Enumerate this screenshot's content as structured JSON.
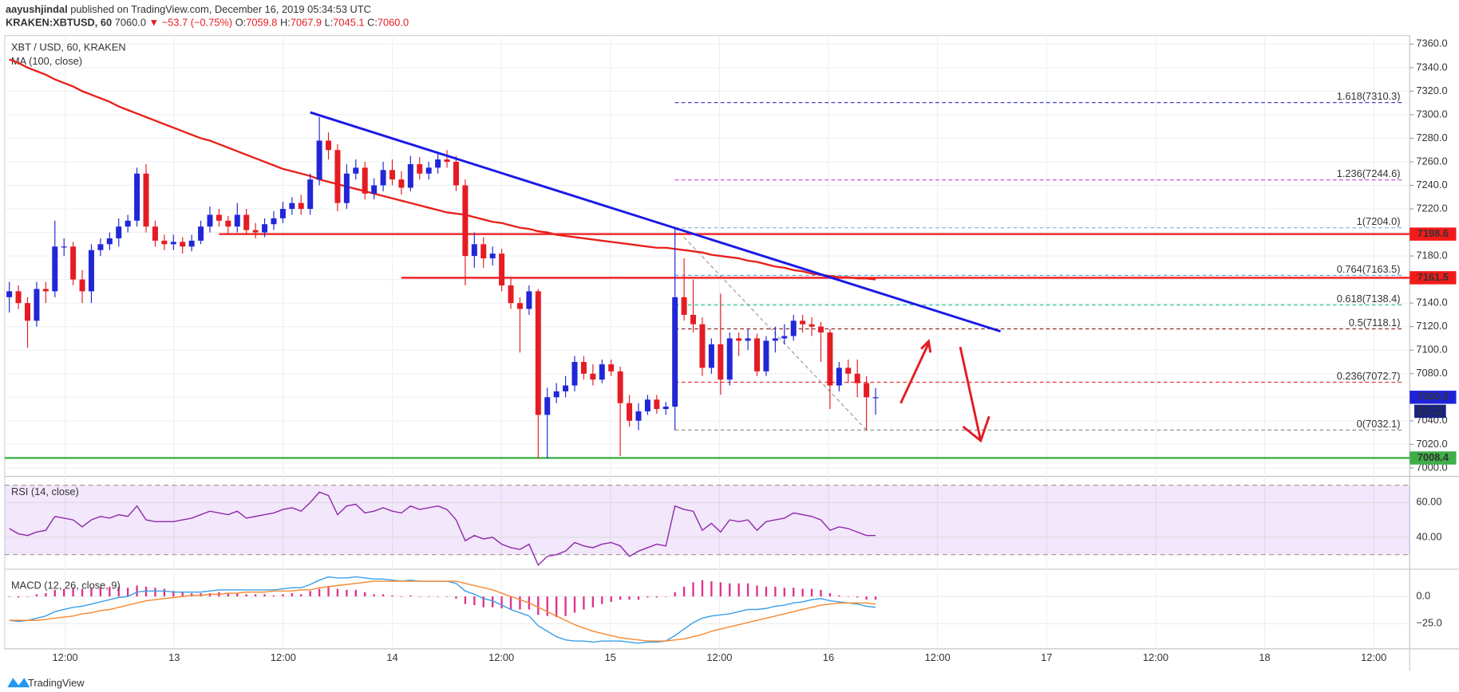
{
  "header": {
    "author": "aayushjindal",
    "published": "published on TradingView.com, December 16, 2019 05:34:53 UTC",
    "symbol": "KRAKEN:XBTUSD, 60",
    "last": "7060.0",
    "change": "▼ −53.7 (−0.75%)",
    "ohlc": [
      {
        "label": "O:",
        "value": "7059.8"
      },
      {
        "label": "H:",
        "value": "7067.9"
      },
      {
        "label": "L:",
        "value": "7045.1"
      },
      {
        "label": "C:",
        "value": "7060.0"
      }
    ]
  },
  "footer": "TradingView",
  "chart_data": {
    "type": "candlestick",
    "title": "XBT / USD, 60, KRAKEN",
    "up_color": "#2127d6",
    "down_color": "#e51c23",
    "ylim": [
      6995.2,
      7365.6
    ],
    "yticks": [
      {
        "value": 7000,
        "label": "7000.0"
      },
      {
        "value": 7020,
        "label": "7020.0"
      },
      {
        "value": 7040,
        "label": "7040.0"
      },
      {
        "value": 7060,
        "label": "7060.0"
      },
      {
        "value": 7080,
        "label": "7080.0"
      },
      {
        "value": 7100,
        "label": "7100.0"
      },
      {
        "value": 7120,
        "label": "7120.0"
      },
      {
        "value": 7140,
        "label": "7140.0"
      },
      {
        "value": 7160,
        "label": "7160.0"
      },
      {
        "value": 7180,
        "label": "7180.0"
      },
      {
        "value": 7200,
        "label": "7200.0"
      },
      {
        "value": 7220,
        "label": "7220.0"
      },
      {
        "value": 7240,
        "label": "7240.0"
      },
      {
        "value": 7260,
        "label": "7260.0"
      },
      {
        "value": 7280,
        "label": "7280.0"
      },
      {
        "value": 7300,
        "label": "7300.0"
      },
      {
        "value": 7320,
        "label": "7320.0"
      },
      {
        "value": 7340,
        "label": "7340.0"
      },
      {
        "value": 7360,
        "label": "7360.0"
      }
    ],
    "grid": true,
    "time_labels": [
      "12:00",
      "13",
      "12:00",
      "14",
      "12:00",
      "15",
      "12:00",
      "16",
      "12:00",
      "17",
      "12:00",
      "18",
      "12:00"
    ],
    "candles": [
      [
        7145,
        7158,
        7132,
        7150
      ],
      [
        7150,
        7155,
        7135,
        7140
      ],
      [
        7140,
        7145,
        7102,
        7125
      ],
      [
        7125,
        7158,
        7120,
        7152
      ],
      [
        7152,
        7158,
        7140,
        7150
      ],
      [
        7150,
        7210,
        7145,
        7188
      ],
      [
        7188,
        7195,
        7180,
        7188
      ],
      [
        7188,
        7192,
        7155,
        7160
      ],
      [
        7160,
        7168,
        7140,
        7150
      ],
      [
        7150,
        7190,
        7140,
        7185
      ],
      [
        7185,
        7195,
        7180,
        7190
      ],
      [
        7190,
        7200,
        7185,
        7195
      ],
      [
        7195,
        7212,
        7188,
        7205
      ],
      [
        7205,
        7215,
        7200,
        7210
      ],
      [
        7210,
        7255,
        7205,
        7250
      ],
      [
        7250,
        7258,
        7200,
        7205
      ],
      [
        7205,
        7210,
        7188,
        7193
      ],
      [
        7193,
        7198,
        7185,
        7190
      ],
      [
        7190,
        7198,
        7185,
        7192
      ],
      [
        7192,
        7196,
        7182,
        7188
      ],
      [
        7188,
        7198,
        7184,
        7193
      ],
      [
        7193,
        7210,
        7190,
        7205
      ],
      [
        7205,
        7222,
        7200,
        7215
      ],
      [
        7215,
        7220,
        7205,
        7210
      ],
      [
        7210,
        7214,
        7198,
        7205
      ],
      [
        7205,
        7225,
        7200,
        7215
      ],
      [
        7215,
        7220,
        7198,
        7202
      ],
      [
        7202,
        7208,
        7195,
        7200
      ],
      [
        7200,
        7212,
        7196,
        7207
      ],
      [
        7207,
        7218,
        7202,
        7212
      ],
      [
        7212,
        7226,
        7208,
        7220
      ],
      [
        7220,
        7230,
        7215,
        7225
      ],
      [
        7225,
        7232,
        7215,
        7220
      ],
      [
        7220,
        7250,
        7215,
        7245
      ],
      [
        7245,
        7298,
        7240,
        7278
      ],
      [
        7278,
        7285,
        7262,
        7270
      ],
      [
        7270,
        7275,
        7218,
        7225
      ],
      [
        7225,
        7258,
        7220,
        7250
      ],
      [
        7250,
        7262,
        7245,
        7255
      ],
      [
        7255,
        7260,
        7228,
        7233
      ],
      [
        7233,
        7246,
        7228,
        7240
      ],
      [
        7240,
        7260,
        7235,
        7253
      ],
      [
        7253,
        7262,
        7240,
        7245
      ],
      [
        7245,
        7252,
        7232,
        7238
      ],
      [
        7238,
        7265,
        7235,
        7258
      ],
      [
        7258,
        7264,
        7245,
        7250
      ],
      [
        7250,
        7260,
        7245,
        7255
      ],
      [
        7255,
        7268,
        7250,
        7262
      ],
      [
        7262,
        7270,
        7255,
        7260
      ],
      [
        7260,
        7265,
        7235,
        7240
      ],
      [
        7240,
        7245,
        7155,
        7180
      ],
      [
        7180,
        7200,
        7170,
        7190
      ],
      [
        7190,
        7196,
        7170,
        7178
      ],
      [
        7178,
        7188,
        7172,
        7182
      ],
      [
        7182,
        7186,
        7150,
        7155
      ],
      [
        7155,
        7162,
        7135,
        7140
      ],
      [
        7140,
        7145,
        7098,
        7135
      ],
      [
        7135,
        7155,
        7130,
        7150
      ],
      [
        7150,
        7152,
        7008,
        7045
      ],
      [
        7045,
        7068,
        7008,
        7060
      ],
      [
        7060,
        7072,
        7055,
        7065
      ],
      [
        7065,
        7078,
        7060,
        7070
      ],
      [
        7070,
        7095,
        7065,
        7090
      ],
      [
        7090,
        7095,
        7075,
        7080
      ],
      [
        7080,
        7088,
        7070,
        7075
      ],
      [
        7075,
        7092,
        7072,
        7088
      ],
      [
        7088,
        7092,
        7078,
        7082
      ],
      [
        7082,
        7086,
        7010,
        7055
      ],
      [
        7055,
        7062,
        7035,
        7040
      ],
      [
        7040,
        7055,
        7032,
        7048
      ],
      [
        7048,
        7062,
        7045,
        7058
      ],
      [
        7058,
        7062,
        7046,
        7050
      ],
      [
        7050,
        7056,
        7045,
        7052
      ],
      [
        7052,
        7204,
        7032,
        7145
      ],
      [
        7145,
        7178,
        7125,
        7130
      ],
      [
        7130,
        7160,
        7115,
        7122
      ],
      [
        7122,
        7128,
        7078,
        7085
      ],
      [
        7085,
        7110,
        7080,
        7105
      ],
      [
        7105,
        7148,
        7062,
        7075
      ],
      [
        7075,
        7115,
        7070,
        7110
      ],
      [
        7110,
        7115,
        7095,
        7108
      ],
      [
        7108,
        7118,
        7100,
        7110
      ],
      [
        7110,
        7114,
        7078,
        7082
      ],
      [
        7082,
        7112,
        7078,
        7108
      ],
      [
        7108,
        7120,
        7098,
        7110
      ],
      [
        7110,
        7122,
        7105,
        7112
      ],
      [
        7112,
        7130,
        7108,
        7125
      ],
      [
        7125,
        7130,
        7115,
        7122
      ],
      [
        7122,
        7128,
        7112,
        7120
      ],
      [
        7120,
        7124,
        7090,
        7115
      ],
      [
        7115,
        7118,
        7050,
        7070
      ],
      [
        7070,
        7090,
        7065,
        7085
      ],
      [
        7085,
        7092,
        7072,
        7080
      ],
      [
        7080,
        7092,
        7060,
        7072
      ],
      [
        7072,
        7078,
        7032,
        7060
      ],
      [
        7059.8,
        7067.9,
        7045.1,
        7060.0
      ]
    ],
    "ma": {
      "name": "MA (100, close)",
      "color": "#e8201a",
      "values": [
        7347,
        7344,
        7340,
        7337,
        7334,
        7330,
        7327,
        7324,
        7320,
        7317,
        7314,
        7311,
        7307,
        7304,
        7301,
        7298,
        7295,
        7292,
        7289,
        7286,
        7283,
        7280,
        7278,
        7275,
        7272,
        7269,
        7266,
        7263,
        7260,
        7257,
        7254,
        7252,
        7250,
        7248,
        7245,
        7243,
        7241,
        7239,
        7237,
        7235,
        7233,
        7231,
        7229,
        7227,
        7225,
        7223,
        7221,
        7219,
        7217,
        7216,
        7215,
        7213,
        7211,
        7209,
        7208,
        7206,
        7204,
        7203,
        7201,
        7200,
        7198,
        7197,
        7196,
        7195,
        7194,
        7193,
        7192,
        7191,
        7190,
        7189,
        7188,
        7187,
        7187,
        7186,
        7185,
        7184,
        7183,
        7181,
        7180,
        7179,
        7178,
        7176,
        7175,
        7173,
        7171,
        7170,
        7168,
        7167,
        7165,
        7164,
        7163,
        7162,
        7162,
        7161,
        7161,
        7160
      ]
    },
    "levels": [
      {
        "value": 7198.6,
        "color": "#f21a1a"
      },
      {
        "value": 7161.5,
        "color": "#f21a1a"
      },
      {
        "value": 7008.4,
        "color": "#3fae49"
      }
    ],
    "last_price": {
      "value": 7060,
      "label": "7060.0",
      "color": "#1f23d6"
    },
    "countdown": "25:12",
    "trendline": {
      "x": [
        33,
        108.7
      ],
      "values": [
        7302,
        7116
      ],
      "color": "#1a1ae6"
    },
    "fib": [
      {
        "label": "1.618(7310.3)",
        "value": 7310.3,
        "color": "#2a2ab8"
      },
      {
        "label": "1.236(7244.6)",
        "value": 7244.6,
        "color": "#c83cd6"
      },
      {
        "label": "1(7204.0)",
        "value": 7204.0,
        "color": "#7fb3d5"
      },
      {
        "label": "0.764(7163.5)",
        "value": 7163.5,
        "color": "#4aa3df"
      },
      {
        "label": "0.618(7138.4)",
        "value": 7138.4,
        "color": "#2fbf9a"
      },
      {
        "label": "0.5(7118.1)",
        "value": 7118.1,
        "color": "#8b2a2a"
      },
      {
        "label": "0.236(7072.7)",
        "value": 7072.7,
        "color": "#e53935"
      },
      {
        "label": "0(7032.1)",
        "value": 7032.1,
        "color": "#888888"
      }
    ],
    "rsi": {
      "name": "RSI (14, close)",
      "color": "#8e2aa8",
      "ylim": [
        22.7,
        74
      ],
      "band": [
        30,
        70
      ],
      "yticks": [
        {
          "value": 40,
          "label": "40.00"
        },
        {
          "value": 60,
          "label": "60.00"
        }
      ],
      "values": [
        45,
        42,
        41,
        43,
        44,
        52,
        51,
        50,
        46,
        50,
        52,
        51,
        53,
        52,
        58,
        50,
        49,
        49,
        49,
        50,
        51,
        53,
        55,
        54,
        53,
        55,
        51,
        52,
        53,
        54,
        56,
        57,
        55,
        60,
        66,
        64,
        53,
        58,
        59,
        54,
        55,
        57,
        55,
        54,
        58,
        56,
        57,
        58,
        56,
        50,
        38,
        41,
        39,
        40,
        36,
        34,
        33,
        36,
        24,
        29,
        30,
        32,
        37,
        35,
        34,
        36,
        37,
        35,
        29,
        32,
        34,
        36,
        35,
        58,
        56,
        55,
        44,
        48,
        43,
        50,
        49,
        50,
        44,
        49,
        50,
        51,
        54,
        53,
        52,
        50,
        44,
        46,
        45,
        43,
        41,
        41
      ]
    },
    "macd": {
      "name": "MACD (12, 26, close, 9)",
      "ylim": [
        -46.5,
        22.5
      ],
      "yticks": [
        {
          "value": 0,
          "label": "0.0"
        },
        {
          "value": -25,
          "label": "−25.0"
        }
      ],
      "series": [
        {
          "color": "#3a9fe8",
          "values": [
            -22,
            -23,
            -22,
            -20,
            -18,
            -14,
            -12,
            -10,
            -9,
            -7,
            -5,
            -3,
            -1,
            0,
            4,
            5,
            5,
            5,
            4,
            4,
            4,
            4,
            5,
            6,
            6,
            6,
            6,
            6,
            6,
            6,
            7,
            8,
            8,
            11,
            15,
            18,
            17,
            17,
            18,
            17,
            16,
            16,
            15,
            14,
            15,
            14,
            14,
            14,
            14,
            12,
            5,
            2,
            -2,
            -4,
            -8,
            -12,
            -15,
            -18,
            -27,
            -32,
            -37,
            -40,
            -41,
            -41,
            -42,
            -41,
            -41,
            -41,
            -42,
            -43,
            -42,
            -42,
            -41,
            -36,
            -30,
            -24,
            -20,
            -18,
            -17,
            -16,
            -14,
            -12,
            -12,
            -11,
            -9,
            -8,
            -6,
            -5,
            -3,
            -2,
            -4,
            -5,
            -6,
            -7,
            -9,
            -10
          ]
        },
        {
          "color": "#f7882f",
          "values": [
            -22,
            -22,
            -22,
            -22,
            -21,
            -20,
            -19,
            -18,
            -16,
            -15,
            -13,
            -12,
            -10,
            -8,
            -6,
            -4,
            -3,
            -2,
            -1,
            0,
            1,
            1,
            2,
            2,
            3,
            3,
            4,
            4,
            4,
            5,
            5,
            5,
            6,
            6,
            8,
            9,
            10,
            11,
            12,
            13,
            14,
            14,
            14,
            14,
            14,
            14,
            14,
            14,
            14,
            14,
            12,
            10,
            8,
            6,
            3,
            0,
            -3,
            -6,
            -10,
            -14,
            -18,
            -22,
            -26,
            -29,
            -32,
            -34,
            -36,
            -38,
            -39,
            -40,
            -41,
            -41,
            -41,
            -40,
            -39,
            -37,
            -35,
            -32,
            -30,
            -28,
            -26,
            -24,
            -22,
            -20,
            -18,
            -16,
            -14,
            -12,
            -10,
            -8,
            -7,
            -6,
            -6,
            -6,
            -6,
            -7
          ]
        }
      ],
      "histogram": {
        "color": "#e0318a",
        "values": [
          0,
          -1,
          0,
          2,
          3,
          6,
          7,
          8,
          7,
          8,
          8,
          9,
          9,
          8,
          10,
          9,
          8,
          7,
          5,
          4,
          3,
          3,
          3,
          4,
          3,
          3,
          2,
          2,
          2,
          1,
          2,
          3,
          2,
          5,
          7,
          9,
          7,
          6,
          6,
          4,
          2,
          2,
          1,
          0,
          1,
          0,
          0,
          0,
          0,
          -2,
          -7,
          -8,
          -10,
          -10,
          -11,
          -12,
          -12,
          -12,
          -17,
          -18,
          -19,
          -18,
          -15,
          -12,
          -10,
          -7,
          -5,
          -3,
          -3,
          -3,
          -1,
          -1,
          0,
          4,
          9,
          13,
          15,
          14,
          13,
          12,
          12,
          12,
          10,
          9,
          9,
          8,
          8,
          7,
          7,
          6,
          3,
          1,
          0,
          -1,
          -3,
          -3
        ]
      }
    }
  }
}
